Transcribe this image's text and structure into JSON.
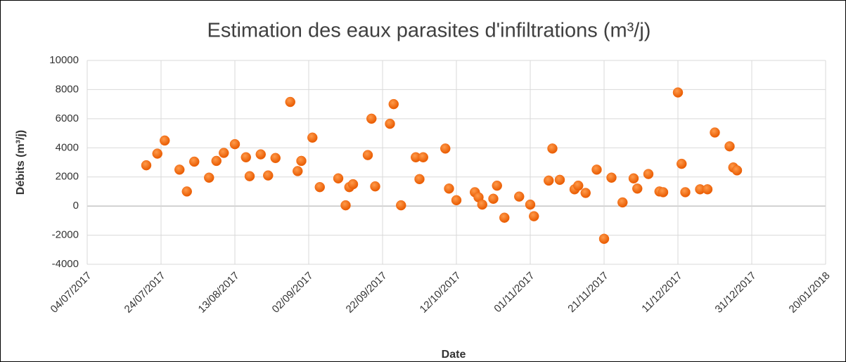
{
  "chart_data": {
    "type": "scatter",
    "title": "Estimation des eaux  parasites d'infiltrations (m³/j)",
    "x_label": "Date",
    "y_label": "Débits (m³/j)",
    "color": "#f4680e",
    "x": [
      "2017-07-20",
      "2017-07-23",
      "2017-07-25",
      "2017-07-29",
      "2017-07-31",
      "2017-08-02",
      "2017-08-06",
      "2017-08-08",
      "2017-08-10",
      "2017-08-13",
      "2017-08-16",
      "2017-08-17",
      "2017-08-20",
      "2017-08-22",
      "2017-08-24",
      "2017-08-28",
      "2017-08-30",
      "2017-08-31",
      "2017-09-03",
      "2017-09-05",
      "2017-09-10",
      "2017-09-12",
      "2017-09-13",
      "2017-09-14",
      "2017-09-18",
      "2017-09-19",
      "2017-09-20",
      "2017-09-24",
      "2017-09-25",
      "2017-09-27",
      "2017-10-01",
      "2017-10-02",
      "2017-10-03",
      "2017-10-09",
      "2017-10-10",
      "2017-10-12",
      "2017-10-17",
      "2017-10-18",
      "2017-10-19",
      "2017-10-22",
      "2017-10-23",
      "2017-10-25",
      "2017-10-29",
      "2017-11-01",
      "2017-11-02",
      "2017-11-06",
      "2017-11-07",
      "2017-11-09",
      "2017-11-13",
      "2017-11-14",
      "2017-11-16",
      "2017-11-19",
      "2017-11-21",
      "2017-11-23",
      "2017-11-26",
      "2017-11-29",
      "2017-11-30",
      "2017-12-03",
      "2017-12-06",
      "2017-12-07",
      "2017-12-11",
      "2017-12-12",
      "2017-12-13",
      "2017-12-17",
      "2017-12-19",
      "2017-12-21",
      "2017-12-25",
      "2017-12-26",
      "2017-12-27"
    ],
    "values": [
      2800,
      3600,
      4500,
      2500,
      1000,
      3050,
      1950,
      3100,
      3650,
      4250,
      3350,
      2050,
      3550,
      2100,
      3300,
      7150,
      2400,
      3100,
      4700,
      1300,
      1900,
      50,
      1300,
      1500,
      3500,
      6000,
      1350,
      5650,
      7000,
      50,
      3350,
      1850,
      3350,
      3950,
      1200,
      400,
      950,
      600,
      100,
      500,
      1400,
      -800,
      650,
      100,
      -700,
      1750,
      3950,
      1800,
      1150,
      1400,
      900,
      2500,
      -2250,
      1950,
      250,
      1900,
      1200,
      2200,
      1000,
      950,
      7800,
      2900,
      950,
      1150,
      1150,
      5050,
      4100,
      2650,
      2450
    ],
    "xlim": [
      "2017-07-04",
      "2018-01-20"
    ],
    "xticks": [
      {
        "value": "2017-07-04",
        "label": "04/07/2017"
      },
      {
        "value": "2017-07-24",
        "label": "24/07/2017"
      },
      {
        "value": "2017-08-13",
        "label": "13/08/2017"
      },
      {
        "value": "2017-09-02",
        "label": "02/09/2017"
      },
      {
        "value": "2017-09-22",
        "label": "22/09/2017"
      },
      {
        "value": "2017-10-12",
        "label": "12/10/2017"
      },
      {
        "value": "2017-11-01",
        "label": "01/11/2017"
      },
      {
        "value": "2017-11-21",
        "label": "21/11/2017"
      },
      {
        "value": "2017-12-11",
        "label": "11/12/2017"
      },
      {
        "value": "2017-12-31",
        "label": "31/12/2017"
      },
      {
        "value": "2018-01-20",
        "label": "20/01/2018"
      }
    ],
    "ylim": [
      -4000,
      10000
    ],
    "yticks": [
      -4000,
      -2000,
      0,
      2000,
      4000,
      6000,
      8000,
      10000
    ],
    "grid": true
  }
}
